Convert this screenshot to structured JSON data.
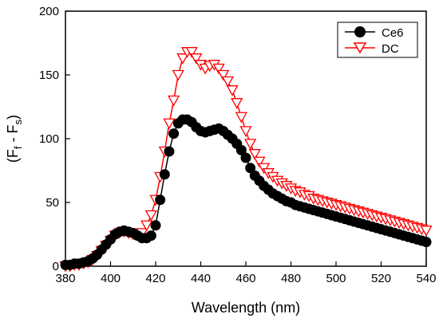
{
  "chart_data": {
    "type": "scatter",
    "xlabel": "Wavelength (nm)",
    "ylabel_main": "(F",
    "ylabel_sub1": "f",
    "ylabel_mid": " - F",
    "ylabel_sub2": "s",
    "ylabel_end": ")",
    "xlim": [
      380,
      540
    ],
    "ylim": [
      0,
      200
    ],
    "xticks": [
      380,
      400,
      420,
      440,
      460,
      480,
      500,
      520,
      540
    ],
    "yticks": [
      0,
      50,
      100,
      150,
      200
    ],
    "legend_position": "top-right",
    "series": [
      {
        "name": "Ce6",
        "color": "#000000",
        "marker": "filled-circle",
        "x": [
          380,
          382,
          384,
          386,
          388,
          390,
          392,
          394,
          396,
          398,
          400,
          402,
          404,
          406,
          408,
          410,
          412,
          414,
          416,
          418,
          420,
          422,
          424,
          426,
          428,
          430,
          432,
          434,
          436,
          438,
          440,
          442,
          444,
          446,
          448,
          450,
          452,
          454,
          456,
          458,
          460,
          462,
          464,
          466,
          468,
          470,
          472,
          474,
          476,
          478,
          480,
          482,
          484,
          486,
          488,
          490,
          492,
          494,
          496,
          498,
          500,
          502,
          504,
          506,
          508,
          510,
          512,
          514,
          516,
          518,
          520,
          522,
          524,
          526,
          528,
          530,
          532,
          534,
          536,
          538,
          540
        ],
        "y": [
          1,
          1,
          2,
          2,
          3,
          4,
          6,
          9,
          13,
          17,
          21,
          25,
          27,
          28,
          27,
          26,
          24,
          22,
          22,
          24,
          32,
          52,
          72,
          90,
          104,
          112,
          115,
          115,
          113,
          109,
          106,
          105,
          106,
          107,
          108,
          106,
          103,
          100,
          96,
          91,
          85,
          77,
          71,
          67,
          63,
          60,
          57,
          55,
          53,
          51,
          50,
          48,
          47,
          46,
          45,
          44,
          43,
          42,
          41,
          40,
          39,
          38,
          37,
          36,
          35,
          34,
          33,
          32,
          31,
          30,
          29,
          28,
          27,
          26,
          25,
          24,
          23,
          22,
          21,
          20,
          19
        ]
      },
      {
        "name": "DC",
        "color": "#ff0000",
        "marker": "open-triangle-down",
        "x": [
          380,
          382,
          384,
          386,
          388,
          390,
          392,
          394,
          396,
          398,
          400,
          402,
          404,
          406,
          408,
          410,
          412,
          414,
          416,
          418,
          420,
          422,
          424,
          426,
          428,
          430,
          432,
          434,
          436,
          438,
          440,
          442,
          444,
          446,
          448,
          450,
          452,
          454,
          456,
          458,
          460,
          462,
          464,
          466,
          468,
          470,
          472,
          474,
          476,
          478,
          480,
          482,
          484,
          486,
          488,
          490,
          492,
          494,
          496,
          498,
          500,
          502,
          504,
          506,
          508,
          510,
          512,
          514,
          516,
          518,
          520,
          522,
          524,
          526,
          528,
          530,
          532,
          534,
          536,
          538,
          540
        ],
        "y": [
          0,
          0,
          1,
          1,
          2,
          3,
          5,
          8,
          12,
          16,
          20,
          24,
          26,
          27,
          26,
          25,
          25,
          26,
          32,
          40,
          52,
          70,
          90,
          112,
          130,
          150,
          163,
          168,
          168,
          163,
          158,
          155,
          157,
          158,
          155,
          150,
          145,
          138,
          128,
          117,
          106,
          96,
          88,
          82,
          77,
          73,
          70,
          67,
          65,
          63,
          61,
          59,
          58,
          56,
          55,
          53,
          52,
          51,
          50,
          49,
          48,
          47,
          46,
          45,
          44,
          43,
          42,
          41,
          40,
          39,
          38,
          37,
          36,
          35,
          34,
          33,
          32,
          31,
          30,
          29,
          28
        ]
      }
    ]
  }
}
